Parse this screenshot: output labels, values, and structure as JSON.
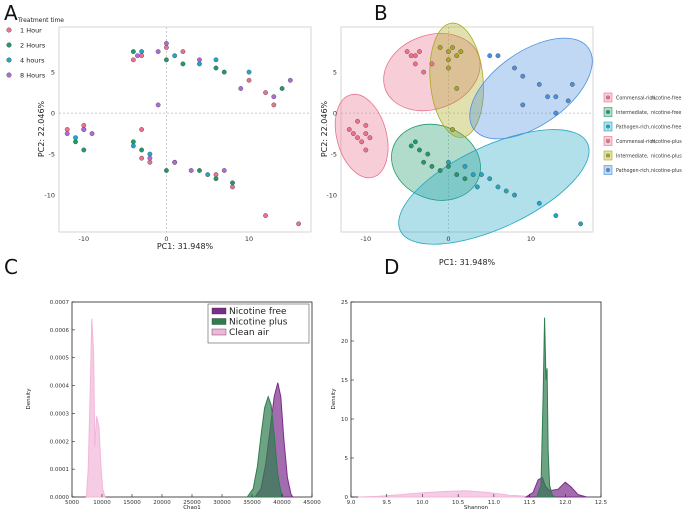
{
  "panel_letters": [
    "A",
    "B",
    "C",
    "D"
  ],
  "colors": {
    "pink": "#e8738c",
    "green": "#1f9a6b",
    "teal": "#23a6c4",
    "purple": "#b06ad8",
    "olive": "#a9a81c",
    "blue": "#4a8fe0",
    "np_purple": "#7b2d8b",
    "np_green": "#2e7d4f",
    "np_pink": "#f2b6d9"
  },
  "chart_data": [
    {
      "id": "A",
      "type": "scatter",
      "title": "",
      "xlabel": "PC1: 31.948%",
      "ylabel": "PC2: 22.046%",
      "xlim": [
        -13,
        17.5
      ],
      "ylim": [
        -14.5,
        10.5
      ],
      "xticks": [
        -10,
        0,
        10
      ],
      "yticks": [
        5,
        0,
        -5,
        -10
      ],
      "xtick_labels": [
        "-10",
        "0",
        "10"
      ],
      "ytick_labels": [
        "5",
        "0",
        "-5",
        "-10"
      ],
      "legend": {
        "title": "Treatment time",
        "entries": [
          "1 Hour",
          "2 Hours",
          "4 hours",
          "8 Hours"
        ]
      },
      "series": [
        {
          "name": "1 Hour",
          "color": "#e8738c",
          "points": [
            [
              -4,
              6.5
            ],
            [
              -3,
              7
            ],
            [
              0,
              8
            ],
            [
              2,
              7.5
            ],
            [
              10,
              4
            ],
            [
              12,
              2.5
            ],
            [
              13,
              1
            ],
            [
              -3,
              -2
            ],
            [
              -3,
              -5.5
            ],
            [
              -2,
              -6
            ],
            [
              6,
              -7.5
            ],
            [
              8,
              -9
            ],
            [
              12,
              -12.5
            ],
            [
              16,
              -13.5
            ],
            [
              -10,
              -1.5
            ],
            [
              -12,
              -2
            ]
          ]
        },
        {
          "name": "2 Hours",
          "color": "#1f9a6b",
          "points": [
            [
              -4,
              7.5
            ],
            [
              0,
              6.5
            ],
            [
              2,
              6
            ],
            [
              6,
              5.5
            ],
            [
              7,
              5
            ],
            [
              -4,
              -3.5
            ],
            [
              -3,
              -4.5
            ],
            [
              0,
              -7
            ],
            [
              4,
              -7
            ],
            [
              6,
              -8
            ],
            [
              8,
              -8.5
            ],
            [
              -11,
              -3.5
            ],
            [
              -10,
              -4.5
            ],
            [
              14,
              3
            ]
          ]
        },
        {
          "name": "4 hours",
          "color": "#23a6c4",
          "points": [
            [
              -3,
              7.5
            ],
            [
              1,
              7
            ],
            [
              4,
              6
            ],
            [
              6,
              6.5
            ],
            [
              10,
              5
            ],
            [
              -4,
              -4
            ],
            [
              -2,
              -5
            ],
            [
              1,
              -6
            ],
            [
              5,
              -7.5
            ],
            [
              -10,
              -2
            ],
            [
              -11,
              -3
            ]
          ]
        },
        {
          "name": "8 Hours",
          "color": "#b06ad8",
          "points": [
            [
              -3.5,
              7
            ],
            [
              -1,
              7.5
            ],
            [
              0,
              8.5
            ],
            [
              4,
              6.5
            ],
            [
              9,
              3
            ],
            [
              13,
              2
            ],
            [
              15,
              4
            ],
            [
              -1,
              1
            ],
            [
              -2,
              -5.5
            ],
            [
              1,
              -6
            ],
            [
              3,
              -7
            ],
            [
              7,
              -7
            ],
            [
              -12,
              -2.5
            ],
            [
              -10,
              -2
            ],
            [
              -9,
              -2.5
            ]
          ]
        }
      ]
    },
    {
      "id": "B",
      "type": "scatter",
      "title": "",
      "xlabel": "PC1: 31.948%",
      "ylabel": "PC2: 22.046%",
      "xlim": [
        -13,
        17.5
      ],
      "ylim": [
        -14.5,
        10.5
      ],
      "xticks": [
        -10,
        0,
        10
      ],
      "yticks": [
        5,
        0,
        -5,
        -10
      ],
      "xtick_labels": [
        "-10",
        "0",
        "10"
      ],
      "ytick_labels": [
        "5",
        "0",
        "-5",
        "-10"
      ],
      "legend_entries": [
        {
          "group": "Commensal-rich,",
          "condition": "nicotine-free",
          "color": "#e8738c"
        },
        {
          "group": "Intermediate,",
          "condition": "nicotine-free",
          "color": "#1f9a6b"
        },
        {
          "group": "Pathogen-rich,",
          "condition": "nicotine-free",
          "color": "#23a6c4"
        },
        {
          "group": "Commensal-rich,",
          "condition": "nicotine-plus",
          "color": "#e8738c"
        },
        {
          "group": "Intermediate,",
          "condition": "nicotine-plus",
          "color": "#a9a81c"
        },
        {
          "group": "Pathogen-rich,",
          "condition": "nicotine-plus",
          "color": "#4a8fe0"
        }
      ],
      "ellipses": [
        {
          "name": "Commensal-rich, nicotine-free",
          "color": "#e8738c",
          "cx": -10.5,
          "cy": -2.8,
          "rx": 3,
          "ry": 5.2,
          "angle": -15
        },
        {
          "name": "Intermediate, nicotine-free",
          "color": "#1f9a6b",
          "cx": -1.5,
          "cy": -6,
          "rx": 5.5,
          "ry": 4.5,
          "angle": 20
        },
        {
          "name": "Pathogen-rich, nicotine-free",
          "color": "#23a6c4",
          "cx": 5.5,
          "cy": -9,
          "rx": 12.5,
          "ry": 5,
          "angle": -25
        },
        {
          "name": "Commensal-rich, nicotine-plus",
          "color": "#e8738c",
          "cx": -2,
          "cy": 5,
          "rx": 6,
          "ry": 4.5,
          "angle": -20
        },
        {
          "name": "Intermediate, nicotine-plus",
          "color": "#a9a81c",
          "cx": 1,
          "cy": 4,
          "rx": 3.2,
          "ry": 7,
          "angle": -5
        },
        {
          "name": "Pathogen-rich, nicotine-plus",
          "color": "#4a8fe0",
          "cx": 10,
          "cy": 3,
          "rx": 8.5,
          "ry": 4.5,
          "angle": -35
        }
      ],
      "series": [
        {
          "name": "Commensal-rich, nicotine-free",
          "color": "#e8738c",
          "points": [
            [
              -12,
              -2
            ],
            [
              -11,
              -1
            ],
            [
              -11,
              -3
            ],
            [
              -10,
              -2.5
            ],
            [
              -10,
              -1.5
            ],
            [
              -9.5,
              -3
            ],
            [
              -10.5,
              -3.5
            ],
            [
              -10,
              -4.5
            ],
            [
              -11.5,
              -2.5
            ]
          ]
        },
        {
          "name": "Intermediate, nicotine-free",
          "color": "#1f9a6b",
          "points": [
            [
              -4.5,
              -4
            ],
            [
              -4,
              -3.5
            ],
            [
              -3.5,
              -4.5
            ],
            [
              -3,
              -6
            ],
            [
              -2,
              -6.5
            ],
            [
              -1,
              -7
            ],
            [
              0,
              -6.5
            ],
            [
              1,
              -7.5
            ],
            [
              2,
              -8
            ],
            [
              -2.5,
              -5
            ]
          ]
        },
        {
          "name": "Pathogen-rich, nicotine-free",
          "color": "#23a6c4",
          "points": [
            [
              0,
              -6
            ],
            [
              3,
              -7.5
            ],
            [
              4,
              -7.5
            ],
            [
              5,
              -8
            ],
            [
              6,
              -9
            ],
            [
              7,
              -9.5
            ],
            [
              8,
              -10
            ],
            [
              11,
              -11
            ],
            [
              13,
              -12.5
            ],
            [
              16,
              -13.5
            ],
            [
              2,
              -6.5
            ],
            [
              3.5,
              -9
            ]
          ]
        },
        {
          "name": "Commensal-rich, nicotine-plus",
          "color": "#e8738c",
          "points": [
            [
              -5,
              7.5
            ],
            [
              -4.5,
              7
            ],
            [
              -4,
              6
            ],
            [
              -3.5,
              7.5
            ],
            [
              -2,
              6
            ],
            [
              -3,
              5
            ],
            [
              -4,
              7
            ]
          ]
        },
        {
          "name": "Intermediate, nicotine-plus",
          "color": "#a9a81c",
          "points": [
            [
              -1,
              8
            ],
            [
              0,
              7.5
            ],
            [
              0.5,
              8
            ],
            [
              1,
              7
            ],
            [
              1.5,
              7.5
            ],
            [
              0,
              5.5
            ],
            [
              1,
              3
            ],
            [
              0.5,
              -2
            ],
            [
              0,
              6.5
            ]
          ]
        },
        {
          "name": "Pathogen-rich, nicotine-plus",
          "color": "#4a8fe0",
          "points": [
            [
              5,
              7
            ],
            [
              6,
              7
            ],
            [
              8,
              5.5
            ],
            [
              9,
              4.5
            ],
            [
              11,
              3.5
            ],
            [
              12,
              2
            ],
            [
              13,
              2
            ],
            [
              15,
              3.5
            ],
            [
              13,
              0
            ],
            [
              9,
              1
            ],
            [
              14.5,
              1.5
            ]
          ]
        }
      ]
    },
    {
      "id": "C",
      "type": "area",
      "title": "",
      "xlabel": "Chao1",
      "ylabel": "Density",
      "xlim": [
        5000,
        45000
      ],
      "ylim": [
        0,
        0.0007
      ],
      "xticks": [
        5000,
        10000,
        15000,
        20000,
        25000,
        30000,
        35000,
        40000,
        45000
      ],
      "xtick_labels": [
        "5000",
        "10000",
        "15000",
        "20000",
        "25000",
        "30000",
        "35000",
        "40000",
        "45000"
      ],
      "yticks": [
        0,
        0.0001,
        0.0002,
        0.0003,
        0.0004,
        0.0005,
        0.0006,
        0.0007
      ],
      "ytick_labels": [
        "0.0000",
        "0.0001",
        "0.0002",
        "0.0003",
        "0.0004",
        "0.0005",
        "0.0006",
        "0.0007"
      ],
      "legend": [
        "Nicotine free",
        "Nicotine plus",
        "Clean air"
      ],
      "series": [
        {
          "name": "Nicotine free",
          "color": "#7b2d8b",
          "points": [
            [
              35500,
              0
            ],
            [
              36500,
              3e-05
            ],
            [
              37300,
              0.00012
            ],
            [
              38000,
              0.00024
            ],
            [
              38700,
              0.00036
            ],
            [
              39300,
              0.00041
            ],
            [
              39800,
              0.00036
            ],
            [
              40300,
              0.00021
            ],
            [
              40900,
              7e-05
            ],
            [
              41500,
              1e-05
            ],
            [
              41800,
              0
            ]
          ]
        },
        {
          "name": "Nicotine plus",
          "color": "#2e7d4f",
          "points": [
            [
              34200,
              0
            ],
            [
              35200,
              3e-05
            ],
            [
              35900,
              0.00011
            ],
            [
              36500,
              0.00022
            ],
            [
              37100,
              0.00032
            ],
            [
              37700,
              0.00036
            ],
            [
              38200,
              0.00033
            ],
            [
              38800,
              0.0002
            ],
            [
              39300,
              8e-05
            ],
            [
              39800,
              2e-05
            ],
            [
              40200,
              0
            ]
          ]
        },
        {
          "name": "Clean air",
          "color": "#f2b6d9",
          "points": [
            [
              7400,
              0
            ],
            [
              7700,
              0.0001
            ],
            [
              8000,
              0.00035
            ],
            [
              8300,
              0.00064
            ],
            [
              8600,
              0.00052
            ],
            [
              8800,
              0.00018
            ],
            [
              9100,
              0.00029
            ],
            [
              9500,
              0.00025
            ],
            [
              9800,
              0.00012
            ],
            [
              10100,
              3e-05
            ],
            [
              10500,
              0
            ]
          ]
        }
      ]
    },
    {
      "id": "D",
      "type": "area",
      "title": "",
      "xlabel": "Shannon",
      "ylabel": "Density",
      "xlim": [
        9.0,
        12.5
      ],
      "ylim": [
        0,
        25
      ],
      "xticks": [
        9.0,
        9.5,
        10.0,
        10.5,
        11.0,
        11.5,
        12.0,
        12.5
      ],
      "xtick_labels": [
        "9.0",
        "9.5",
        "10.0",
        "10.5",
        "11.0",
        "11.5",
        "12.0",
        "12.5"
      ],
      "yticks": [
        0,
        5,
        10,
        15,
        20,
        25
      ],
      "ytick_labels": [
        "0",
        "5",
        "10",
        "15",
        "20",
        "25"
      ],
      "series": [
        {
          "name": "Clean air",
          "color": "#f2b6d9",
          "points": [
            [
              9.1,
              0
            ],
            [
              9.4,
              0.1
            ],
            [
              9.7,
              0.3
            ],
            [
              10.0,
              0.55
            ],
            [
              10.3,
              0.7
            ],
            [
              10.6,
              0.8
            ],
            [
              10.9,
              0.6
            ],
            [
              11.2,
              0.25
            ],
            [
              11.5,
              0.05
            ],
            [
              11.8,
              0
            ]
          ]
        },
        {
          "name": "Nicotine free",
          "color": "#7b2d8b",
          "points": [
            [
              11.45,
              0
            ],
            [
              11.55,
              0.6
            ],
            [
              11.62,
              2.2
            ],
            [
              11.68,
              2.5
            ],
            [
              11.72,
              1.4
            ],
            [
              11.78,
              0.8
            ],
            [
              11.9,
              1.0
            ],
            [
              12.0,
              1.9
            ],
            [
              12.08,
              1.3
            ],
            [
              12.18,
              0.3
            ],
            [
              12.3,
              0
            ]
          ]
        },
        {
          "name": "Nicotine plus",
          "color": "#2e7d4f",
          "points": [
            [
              11.6,
              0
            ],
            [
              11.66,
              1.5
            ],
            [
              11.69,
              13
            ],
            [
              11.71,
              23
            ],
            [
              11.73,
              15
            ],
            [
              11.745,
              16.5
            ],
            [
              11.76,
              6
            ],
            [
              11.78,
              1.5
            ],
            [
              11.82,
              0.2
            ],
            [
              11.86,
              0
            ]
          ]
        }
      ]
    }
  ]
}
